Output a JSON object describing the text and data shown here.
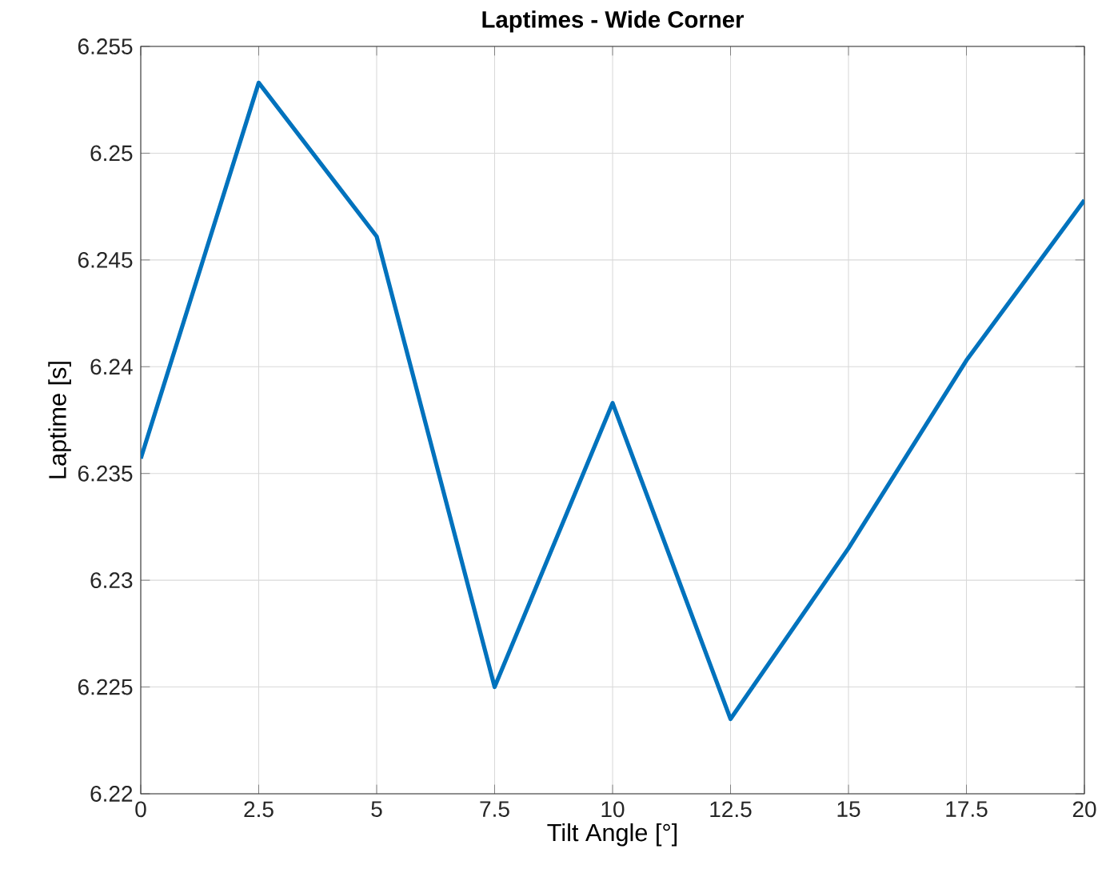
{
  "chart_data": {
    "type": "line",
    "title": "Laptimes - Wide Corner",
    "xlabel": "Tilt Angle [°]",
    "ylabel": "Laptime [s]",
    "x": [
      0,
      2.5,
      5,
      7.5,
      10,
      12.5,
      15,
      17.5,
      20
    ],
    "series": [
      {
        "color": "#0072bd",
        "values": [
          6.2357,
          6.2533,
          6.2461,
          6.225,
          6.2383,
          6.2235,
          6.2315,
          6.2403,
          6.2478
        ]
      }
    ],
    "xlim": [
      0,
      20
    ],
    "ylim": [
      6.22,
      6.255
    ],
    "xticks": [
      0,
      2.5,
      5,
      7.5,
      10,
      12.5,
      15,
      17.5,
      20
    ],
    "yticks": [
      6.22,
      6.225,
      6.23,
      6.235,
      6.24,
      6.245,
      6.25,
      6.255
    ],
    "grid": true,
    "marker": "none",
    "line_style": "solid"
  }
}
